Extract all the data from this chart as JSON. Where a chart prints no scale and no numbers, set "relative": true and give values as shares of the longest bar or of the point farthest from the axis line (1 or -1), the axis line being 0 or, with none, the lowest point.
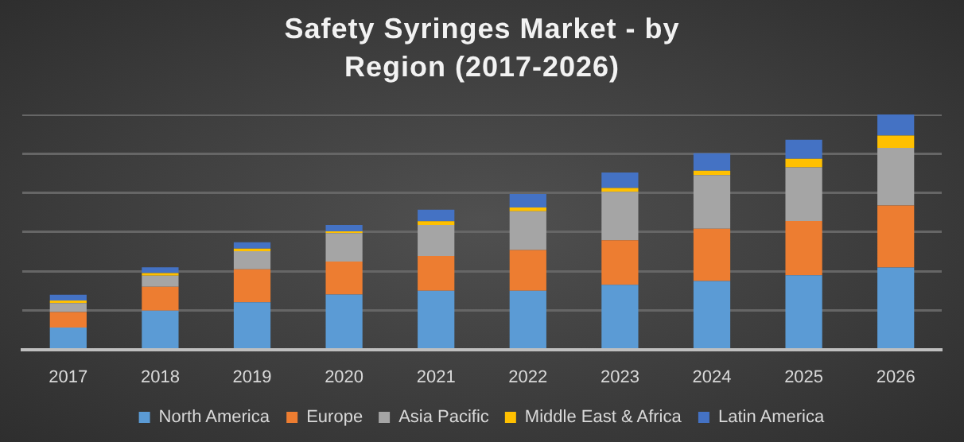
{
  "chart_data": {
    "type": "bar",
    "title": "Safety Syringes Market - by Region (2017-2026)",
    "categories": [
      "2017",
      "2018",
      "2019",
      "2020",
      "2021",
      "2022",
      "2023",
      "2024",
      "2025",
      "2026"
    ],
    "stacked": true,
    "relative": true,
    "grid": "y",
    "legend": "bottom",
    "series": [
      {
        "name": "North America",
        "color": "#5b9bd5",
        "values": [
          0.093,
          0.165,
          0.201,
          0.234,
          0.25,
          0.25,
          0.275,
          0.291,
          0.316,
          0.349
        ]
      },
      {
        "name": "Europe",
        "color": "#ed7d31",
        "values": [
          0.066,
          0.102,
          0.14,
          0.14,
          0.148,
          0.173,
          0.19,
          0.223,
          0.231,
          0.264
        ]
      },
      {
        "name": "Asia Pacific",
        "color": "#a5a5a5",
        "values": [
          0.038,
          0.047,
          0.077,
          0.121,
          0.132,
          0.165,
          0.206,
          0.228,
          0.228,
          0.245
        ]
      },
      {
        "name": "Middle East & Africa",
        "color": "#ffc000",
        "values": [
          0.011,
          0.011,
          0.011,
          0.008,
          0.016,
          0.016,
          0.016,
          0.019,
          0.036,
          0.052
        ]
      },
      {
        "name": "Latin America",
        "color": "#4472c4",
        "values": [
          0.025,
          0.025,
          0.027,
          0.027,
          0.049,
          0.058,
          0.066,
          0.074,
          0.082,
          0.09
        ]
      }
    ]
  }
}
